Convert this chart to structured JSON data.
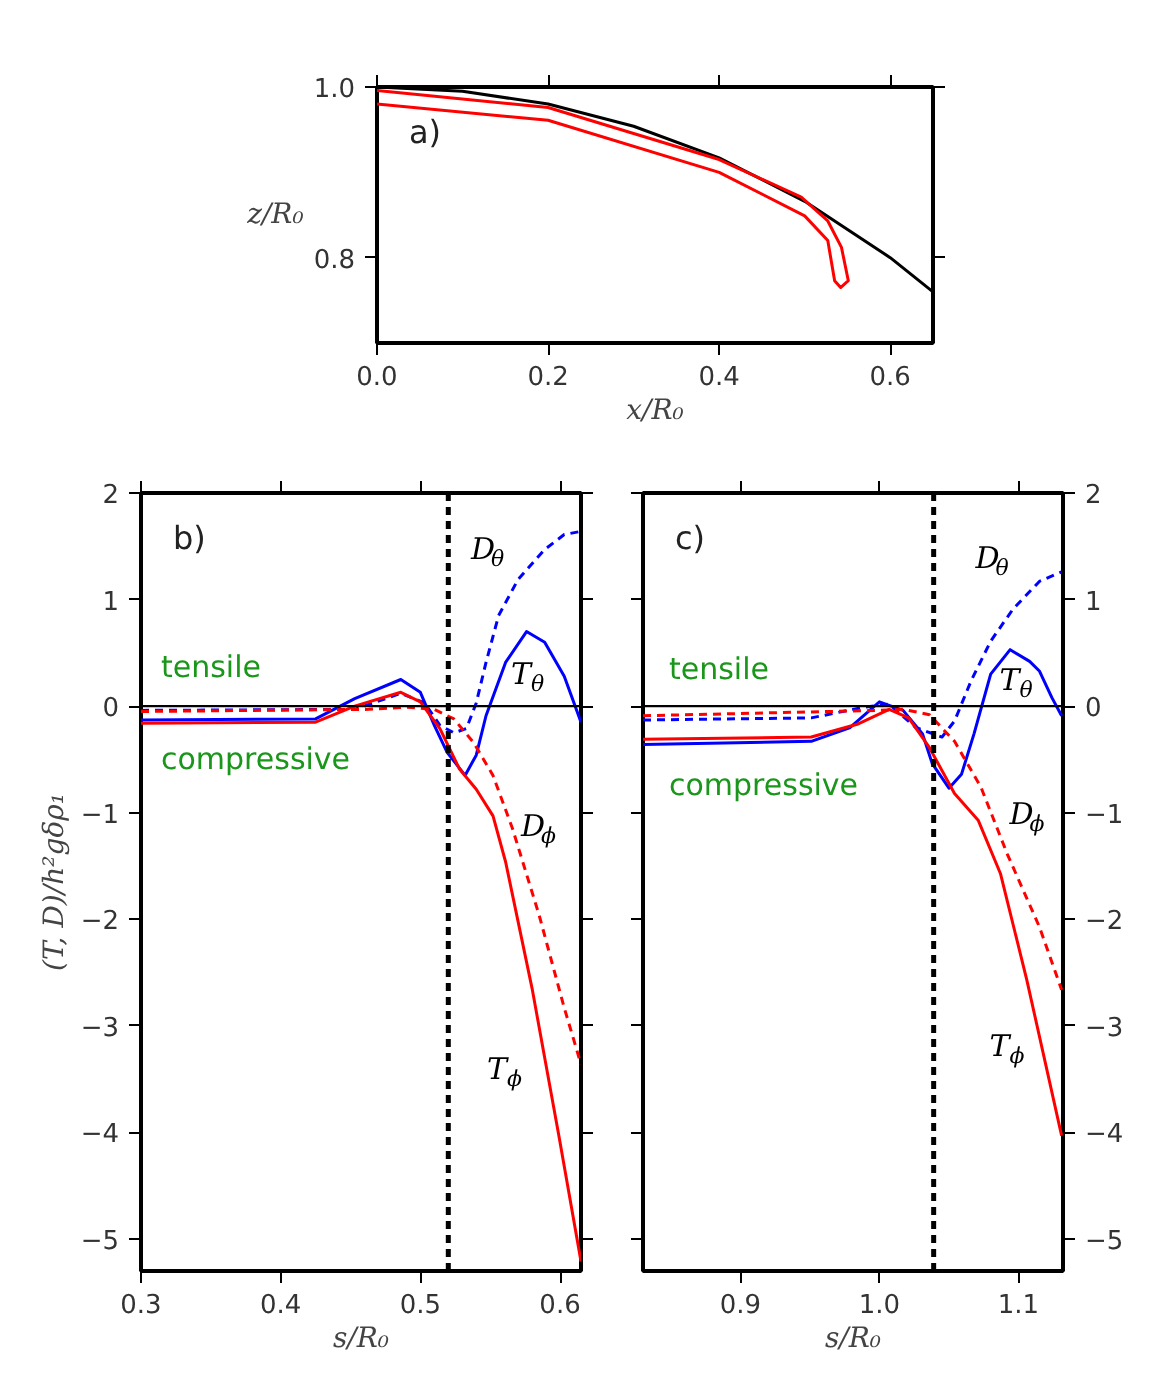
{
  "chart_data": [
    {
      "type": "line",
      "title": "a)",
      "xlabel": "x/R₀",
      "ylabel": "z/R₀",
      "xlim": [
        0,
        0.65
      ],
      "ylim": [
        0.7,
        1.0
      ],
      "xticks": [
        {
          "value": 0,
          "label": "0.0"
        },
        0.2,
        0.4,
        0.6
      ],
      "yticks": [
        0.8,
        {
          "value": 1.0,
          "label": "1.0"
        }
      ],
      "series": [
        {
          "color": "#000000",
          "x": [
            0,
            0.1,
            0.2,
            0.3,
            0.4,
            0.5,
            0.6,
            0.65
          ],
          "values": [
            1.0,
            0.995,
            0.98,
            0.954,
            0.917,
            0.866,
            0.8,
            0.76
          ]
        },
        {
          "color": "#ff0000",
          "x": [
            0,
            0.2,
            0.4,
            0.5,
            0.527,
            0.535,
            0.542,
            0.551,
            0.543,
            0.527,
            0.496,
            0.4,
            0.2,
            0
          ],
          "values": [
            0.98,
            0.961,
            0.9,
            0.849,
            0.82,
            0.773,
            0.765,
            0.773,
            0.812,
            0.843,
            0.871,
            0.915,
            0.976,
            0.996
          ]
        }
      ]
    },
    {
      "type": "line",
      "title": "b)",
      "xlabel": "s/R₀",
      "ylabel": "(T, D)/h²gδρ₁",
      "xlim": [
        0.3,
        0.615
      ],
      "ylim": [
        -5.3,
        2
      ],
      "xticks": [
        0.3,
        0.4,
        0.5,
        0.6
      ],
      "yticks": [
        {
          "value": -5,
          "label": "−5"
        },
        {
          "value": -4,
          "label": "−4"
        },
        {
          "value": -3,
          "label": "−3"
        },
        {
          "value": -2,
          "label": "−2"
        },
        {
          "value": -1,
          "label": "−1"
        },
        0,
        1,
        2
      ],
      "series": [
        {
          "name": "T$_{θ}$",
          "color": "#0000ff",
          "line_style": "solid",
          "x": [
            0.3,
            0.425,
            0.453,
            0.486,
            0.5,
            0.51,
            0.519,
            0.532,
            0.54,
            0.547,
            0.561,
            0.576,
            0.589,
            0.603,
            0.615
          ],
          "values": [
            -0.13,
            -0.12,
            0.07,
            0.25,
            0.13,
            -0.18,
            -0.43,
            -0.65,
            -0.46,
            -0.09,
            0.41,
            0.7,
            0.6,
            0.28,
            -0.15
          ]
        },
        {
          "name": "D$_{θ}$",
          "color": "#0000ff",
          "line_style": "dashed",
          "x": [
            0.3,
            0.453,
            0.486,
            0.503,
            0.514,
            0.524,
            0.533,
            0.54,
            0.547,
            0.556,
            0.57,
            0.589,
            0.603,
            0.615
          ],
          "values": [
            -0.04,
            -0.03,
            0.12,
            0.03,
            -0.18,
            -0.25,
            -0.21,
            0.03,
            0.41,
            0.85,
            1.19,
            1.47,
            1.61,
            1.64
          ]
        },
        {
          "name": "T$_{ϕ}$",
          "color": "#ff0000",
          "line_style": "solid",
          "x": [
            0.3,
            0.425,
            0.453,
            0.486,
            0.5,
            0.514,
            0.528,
            0.54,
            0.552,
            0.561,
            0.58,
            0.599,
            0.615
          ],
          "values": [
            -0.16,
            -0.15,
            0.0,
            0.13,
            0.04,
            -0.21,
            -0.59,
            -0.78,
            -1.03,
            -1.46,
            -2.65,
            -4.02,
            -5.21
          ]
        },
        {
          "name": "D$_{ϕ}$",
          "color": "#ff0000",
          "line_style": "dashed",
          "x": [
            0.3,
            0.463,
            0.491,
            0.51,
            0.524,
            0.538,
            0.552,
            0.566,
            0.585,
            0.603,
            0.615
          ],
          "values": [
            -0.05,
            -0.03,
            -0.01,
            -0.03,
            -0.12,
            -0.34,
            -0.65,
            -1.15,
            -1.96,
            -2.83,
            -3.36
          ]
        }
      ],
      "ref_lines": [
        {
          "axis": "y",
          "value": 0,
          "color": "#000000",
          "line_style": "solid"
        },
        {
          "axis": "x",
          "value": 0.52,
          "color": "#000000",
          "line_style": "dashed"
        }
      ],
      "annotations": [
        "tensile",
        "compressive"
      ]
    },
    {
      "type": "line",
      "title": "c)",
      "xlabel": "s/R₀",
      "xlim": [
        0.83,
        1.132
      ],
      "ylim": [
        -5.3,
        2
      ],
      "xticks": [
        0.9,
        {
          "value": 1.0,
          "label": "1.0"
        },
        1.1
      ],
      "yticks": [
        {
          "value": -5,
          "label": "−5"
        },
        {
          "value": -4,
          "label": "−4"
        },
        {
          "value": -3,
          "label": "−3"
        },
        {
          "value": -2,
          "label": "−2"
        },
        {
          "value": -1,
          "label": "−1"
        },
        0,
        1,
        2
      ],
      "series": [
        {
          "name": "T$_{θ}$",
          "color": "#0000ff",
          "line_style": "solid",
          "x": [
            0.83,
            0.951,
            0.979,
            1.0,
            1.017,
            1.031,
            1.038,
            1.05,
            1.059,
            1.068,
            1.08,
            1.094,
            1.108,
            1.115,
            1.124,
            1.131
          ],
          "values": [
            -0.36,
            -0.33,
            -0.2,
            0.04,
            -0.04,
            -0.26,
            -0.54,
            -0.77,
            -0.64,
            -0.26,
            0.3,
            0.53,
            0.42,
            0.33,
            0.08,
            -0.09
          ]
        },
        {
          "name": "D$_{θ}$",
          "color": "#0000ff",
          "line_style": "dashed",
          "x": [
            0.83,
            0.951,
            0.989,
            1.007,
            1.026,
            1.045,
            1.054,
            1.066,
            1.08,
            1.096,
            1.115,
            1.131
          ],
          "values": [
            -0.13,
            -0.11,
            -0.01,
            0.02,
            -0.2,
            -0.29,
            -0.14,
            0.24,
            0.61,
            0.91,
            1.17,
            1.26
          ]
        },
        {
          "name": "T$_{ϕ}$",
          "color": "#ff0000",
          "line_style": "solid",
          "x": [
            0.83,
            0.951,
            0.984,
            1.007,
            1.021,
            1.036,
            1.054,
            1.071,
            1.087,
            1.106,
            1.131
          ],
          "values": [
            -0.31,
            -0.29,
            -0.17,
            -0.03,
            -0.11,
            -0.39,
            -0.82,
            -1.07,
            -1.57,
            -2.57,
            -4.03
          ]
        },
        {
          "name": "D$_{ϕ}$",
          "color": "#ff0000",
          "line_style": "dashed",
          "x": [
            0.83,
            0.998,
            1.017,
            1.036,
            1.054,
            1.073,
            1.092,
            1.115,
            1.131
          ],
          "values": [
            -0.09,
            -0.04,
            -0.03,
            -0.08,
            -0.33,
            -0.76,
            -1.39,
            -2.07,
            -2.66
          ]
        }
      ],
      "ref_lines": [
        {
          "axis": "y",
          "value": 0,
          "color": "#000000",
          "line_style": "solid"
        },
        {
          "axis": "x",
          "value": 1.039,
          "color": "#000000",
          "line_style": "dashed"
        }
      ],
      "annotations": [
        "tensile",
        "compressive"
      ]
    }
  ]
}
